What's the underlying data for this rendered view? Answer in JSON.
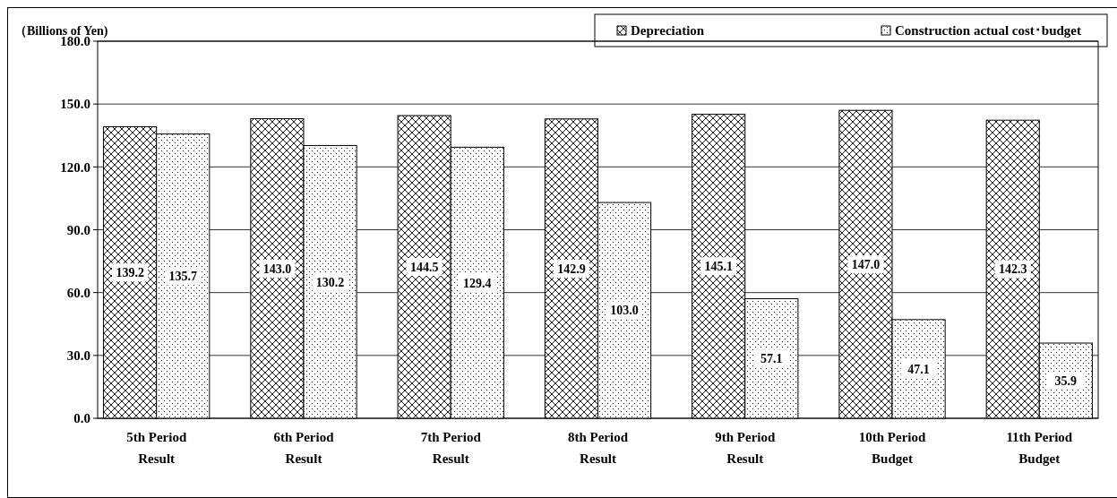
{
  "chart_data": {
    "type": "bar",
    "ylabel": "（Billions of Yen)",
    "categories": [
      "5th Period Result",
      "6th Period Result",
      "7th Period Result",
      "8th Period Result",
      "9th Period Result",
      "10th Period Budget",
      "11th Period Budget"
    ],
    "series": [
      {
        "name": "Depreciation",
        "color": "#000000",
        "values": [
          139.2,
          143.0,
          144.5,
          142.9,
          145.1,
          147.0,
          142.3
        ],
        "value_labels": [
          "139.2",
          "143.0",
          "144.5",
          "142.9",
          "145.1",
          "147.0",
          "142.3"
        ]
      },
      {
        "name": "Construction actual cost･budget",
        "color": "#000000",
        "values": [
          135.7,
          130.2,
          129.4,
          103.0,
          57.1,
          47.1,
          35.9
        ],
        "value_labels": [
          "135.7",
          "130.2",
          "129.4",
          "103.0",
          "57.1",
          "47.1",
          "35.9"
        ]
      }
    ],
    "ylim": [
      0,
      180
    ],
    "yticks": [
      {
        "value": 0,
        "label": "0.0"
      },
      {
        "value": 30,
        "label": "30.0"
      },
      {
        "value": 60,
        "label": "60.0"
      },
      {
        "value": 90,
        "label": "90.0"
      },
      {
        "value": 120,
        "label": "120.0"
      },
      {
        "value": 150,
        "label": "150.0"
      },
      {
        "value": 180,
        "label": "180.0"
      }
    ],
    "grid": "y",
    "legend": "top right"
  }
}
